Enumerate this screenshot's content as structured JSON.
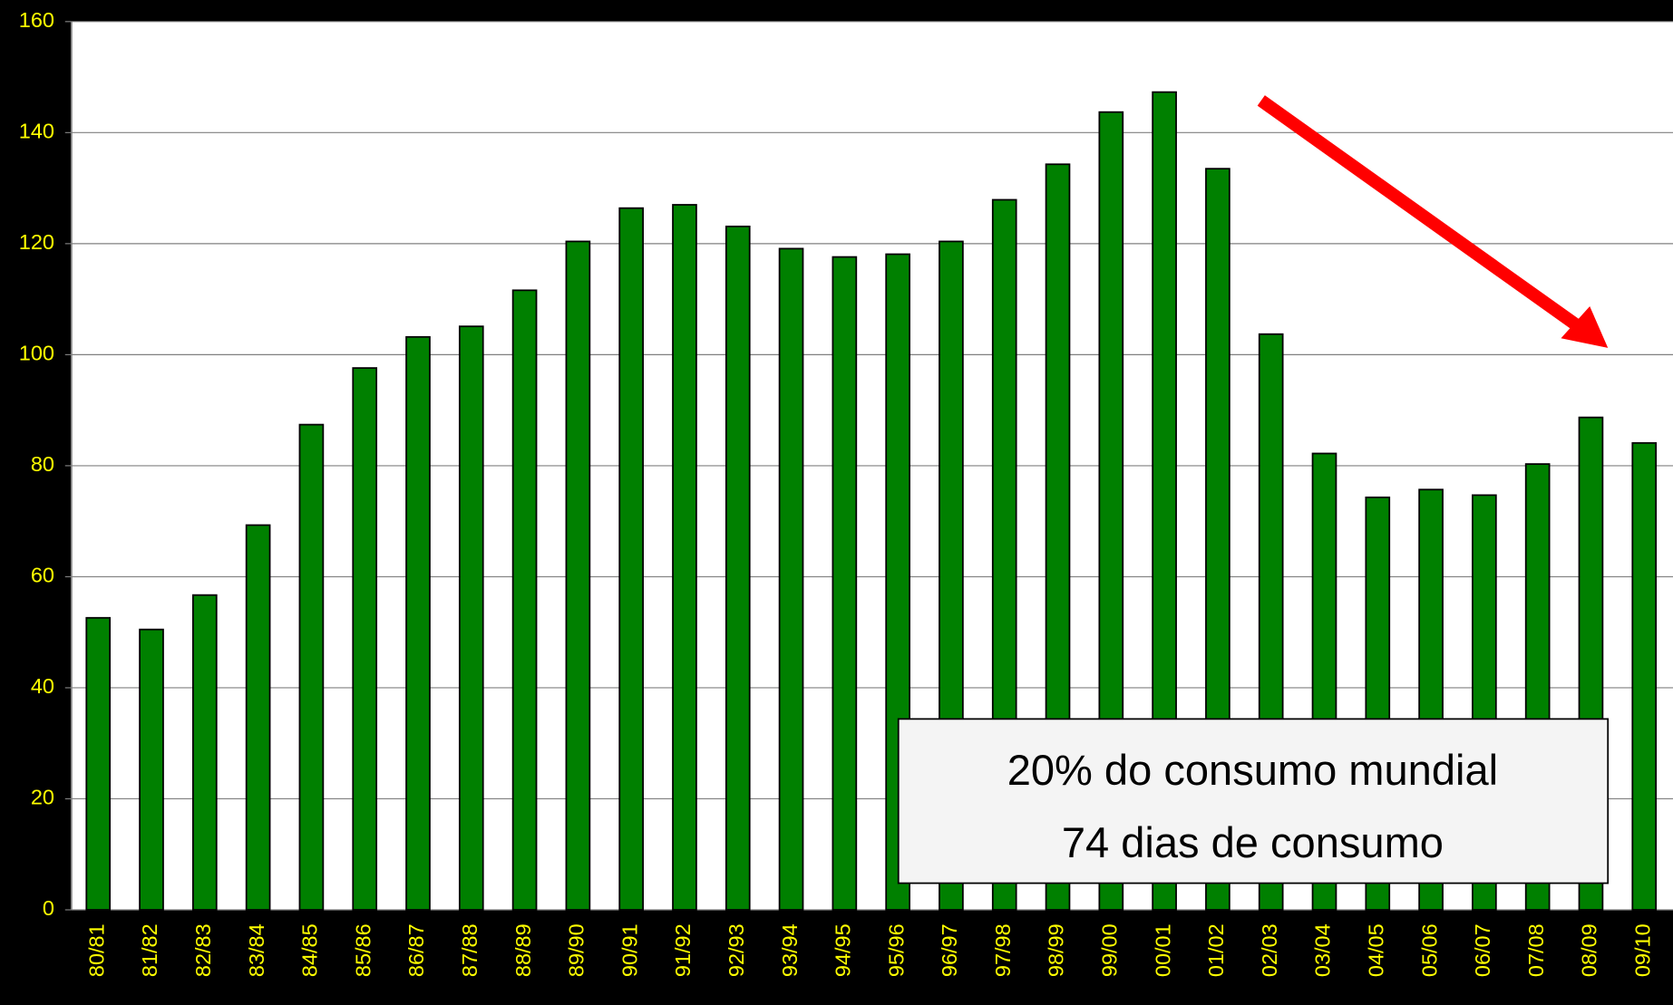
{
  "chart_data": {
    "type": "bar",
    "categories": [
      "80/81",
      "81/82",
      "82/83",
      "83/84",
      "84/85",
      "85/86",
      "86/87",
      "87/88",
      "88/89",
      "89/90",
      "90/91",
      "91/92",
      "92/93",
      "93/94",
      "94/95",
      "95/96",
      "96/97",
      "97/98",
      "98/99",
      "99/00",
      "00/01",
      "01/02",
      "02/03",
      "03/04",
      "04/05",
      "05/06",
      "06/07",
      "07/08",
      "08/09",
      "09/10"
    ],
    "values": [
      52.6,
      50.5,
      56.7,
      69.3,
      87.4,
      97.6,
      103.2,
      105.1,
      111.6,
      120.4,
      126.4,
      127.0,
      123.1,
      119.1,
      117.6,
      118.1,
      120.4,
      127.9,
      134.3,
      143.7,
      147.3,
      133.5,
      103.7,
      82.2,
      74.3,
      75.7,
      74.7,
      80.3,
      88.7,
      84.1
    ],
    "color": "#008000",
    "ylim": [
      0,
      160
    ],
    "yticks": [
      0,
      20,
      40,
      60,
      80,
      100,
      120,
      140,
      160
    ],
    "grid": true,
    "annotations": [
      "20% do consumo mundial",
      "74 dias de consumo"
    ]
  }
}
